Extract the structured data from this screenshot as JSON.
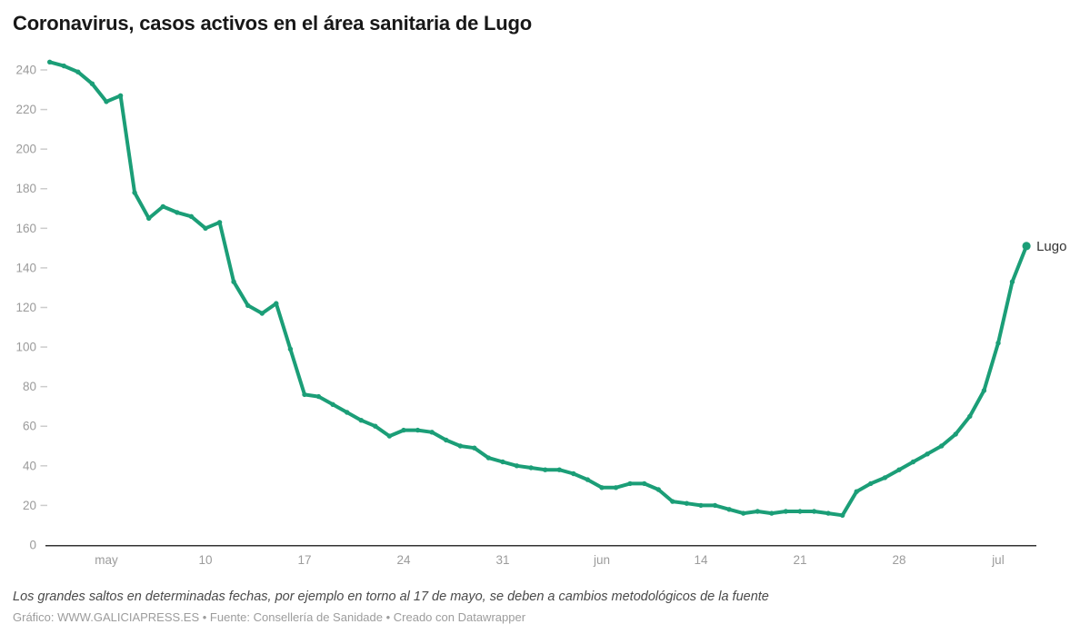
{
  "title": "Coronavirus, casos activos en el área sanitaria de Lugo",
  "footer": {
    "note": "Los grandes saltos en determinadas fechas, por ejemplo en torno al 17 de mayo, se deben a cambios metodológicos de la fuente",
    "source": "Gráfico: WWW.GALICIAPRESS.ES • Fuente: Consellería de Sanidade • Creado con Datawrapper"
  },
  "colors": {
    "line": "#1b9e77",
    "axis_text": "#9b9b9b",
    "tick_dash": "#cccccc",
    "baseline": "#333333",
    "series_label": "#333333"
  },
  "chart_data": {
    "type": "line",
    "title": "Coronavirus, casos activos en el área sanitaria de Lugo",
    "series_label": "Lugo",
    "xlabel": "",
    "ylabel": "",
    "ylim": [
      0,
      250
    ],
    "grid": false,
    "legend_position": "end-of-line",
    "x": [
      "29 abr",
      "30 abr",
      "1 may",
      "2 may",
      "3 may",
      "4 may",
      "5 may",
      "6 may",
      "7 may",
      "8 may",
      "9 may",
      "10 may",
      "11 may",
      "12 may",
      "13 may",
      "14 may",
      "15 may",
      "16 may",
      "17 may",
      "18 may",
      "19 may",
      "20 may",
      "21 may",
      "22 may",
      "23 may",
      "24 may",
      "25 may",
      "26 may",
      "27 may",
      "28 may",
      "29 may",
      "30 may",
      "31 may",
      "1 jun",
      "2 jun",
      "3 jun",
      "4 jun",
      "5 jun",
      "6 jun",
      "7 jun",
      "8 jun",
      "9 jun",
      "10 jun",
      "11 jun",
      "12 jun",
      "13 jun",
      "14 jun",
      "15 jun",
      "16 jun",
      "17 jun",
      "18 jun",
      "19 jun",
      "20 jun",
      "21 jun",
      "22 jun",
      "23 jun",
      "24 jun",
      "25 jun",
      "26 jun",
      "27 jun",
      "28 jun",
      "29 jun",
      "30 jun",
      "1 jul",
      "2 jul",
      "3 jul",
      "4 jul",
      "5 jul",
      "6 jul",
      "7 jul"
    ],
    "values": [
      244,
      242,
      239,
      233,
      224,
      227,
      178,
      165,
      171,
      168,
      166,
      160,
      163,
      133,
      121,
      117,
      122,
      99,
      76,
      75,
      71,
      67,
      63,
      60,
      55,
      58,
      58,
      57,
      53,
      50,
      49,
      44,
      42,
      40,
      39,
      38,
      38,
      36,
      33,
      29,
      29,
      31,
      31,
      28,
      22,
      21,
      20,
      20,
      18,
      16,
      17,
      16,
      17,
      17,
      17,
      16,
      15,
      27,
      31,
      34,
      38,
      42,
      46,
      50,
      56,
      65,
      78,
      102,
      133,
      151
    ],
    "y_ticks": [
      0,
      20,
      40,
      60,
      80,
      100,
      120,
      140,
      160,
      180,
      200,
      220,
      240
    ],
    "x_ticks": [
      {
        "i": 4,
        "label": "may"
      },
      {
        "i": 11,
        "label": "10"
      },
      {
        "i": 18,
        "label": "17"
      },
      {
        "i": 25,
        "label": "24"
      },
      {
        "i": 32,
        "label": "31"
      },
      {
        "i": 39,
        "label": "jun"
      },
      {
        "i": 46,
        "label": "14"
      },
      {
        "i": 53,
        "label": "21"
      },
      {
        "i": 60,
        "label": "28"
      },
      {
        "i": 67,
        "label": "jul"
      }
    ]
  }
}
